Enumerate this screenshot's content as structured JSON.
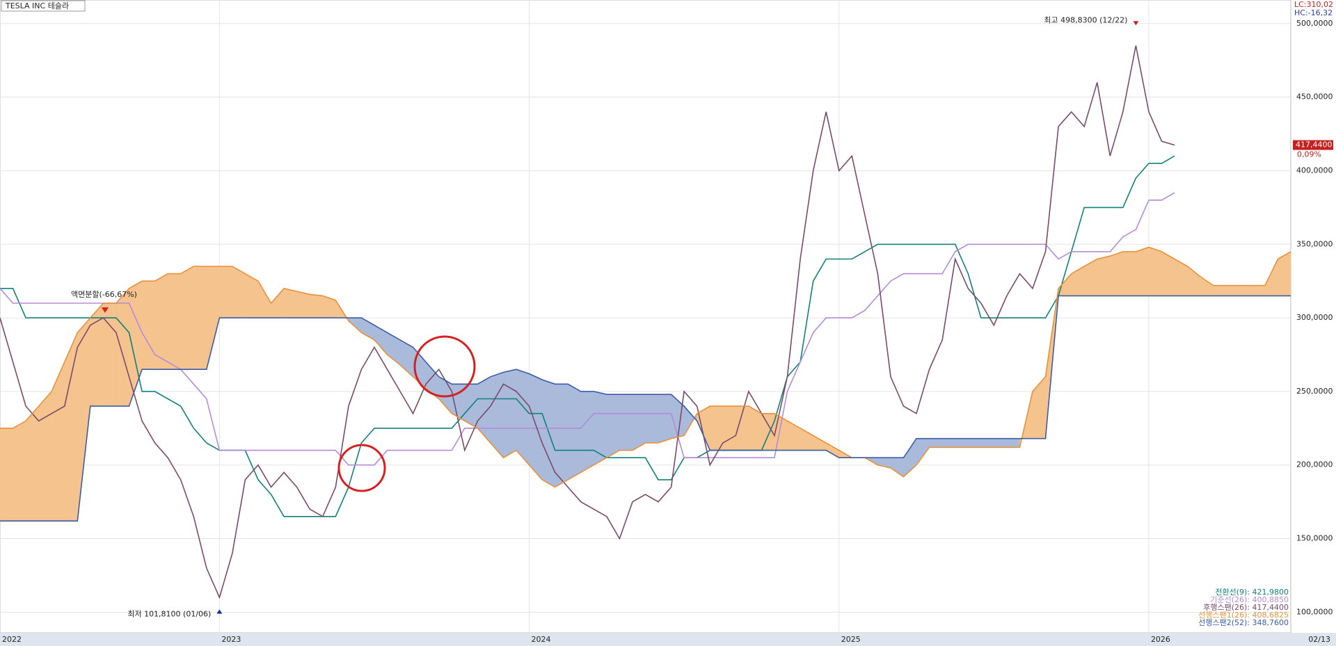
{
  "header": {
    "title": "TESLA INC  테슬라",
    "lc": "LC:310,02",
    "hc": "HC:-16,32"
  },
  "chart_data": {
    "type": "ichimoku",
    "categories": [
      "2022",
      null,
      null,
      null,
      null,
      null,
      null,
      null,
      null,
      null,
      null,
      null,
      null,
      null,
      null,
      null,
      null,
      "2023",
      null,
      null,
      null,
      null,
      null,
      null,
      null,
      null,
      null,
      null,
      null,
      null,
      null,
      null,
      null,
      null,
      null,
      null,
      null,
      null,
      null,
      null,
      null,
      "2024",
      null,
      null,
      null,
      null,
      null,
      null,
      null,
      null,
      null,
      null,
      null,
      null,
      null,
      null,
      null,
      null,
      null,
      null,
      null,
      null,
      null,
      null,
      null,
      "2025",
      null,
      null,
      null,
      null,
      null,
      null,
      null,
      null,
      null,
      null,
      null,
      null,
      null,
      null,
      null,
      null,
      null,
      null,
      null,
      null,
      null,
      null,
      null,
      "2026",
      null,
      null,
      null,
      null,
      null,
      null,
      null,
      null,
      null,
      null,
      "02/13"
    ],
    "ylim": [
      86,
      516
    ],
    "yticks": [
      {
        "value": 100,
        "label": "100,0000"
      },
      {
        "value": 150,
        "label": "150,0000"
      },
      {
        "value": 200,
        "label": "200,0000"
      },
      {
        "value": 250,
        "label": "250,0000"
      },
      {
        "value": 300,
        "label": "300,0000"
      },
      {
        "value": 350,
        "label": "350,0000"
      },
      {
        "value": 400,
        "label": "400,0000"
      },
      {
        "value": 450,
        "label": "450,0000"
      },
      {
        "value": 500,
        "label": "500,0000"
      }
    ],
    "grid": true,
    "cloud_colors": {
      "up": "#f4c38e",
      "down": "#a9badb"
    },
    "series": [
      {
        "name": "전환선(9): 421,9800",
        "color": "#12807a",
        "values": [
          320,
          320,
          300,
          300,
          300,
          300,
          300,
          300,
          300,
          300,
          290,
          250,
          250,
          245,
          240,
          225,
          215,
          210,
          210,
          210,
          190,
          180,
          165,
          165,
          165,
          165,
          165,
          185,
          215,
          225,
          225,
          225,
          225,
          225,
          225,
          225,
          235,
          245,
          245,
          245,
          245,
          235,
          235,
          210,
          210,
          210,
          210,
          205,
          205,
          205,
          205,
          190,
          190,
          205,
          205,
          210,
          210,
          210,
          210,
          210,
          230,
          260,
          270,
          325,
          340,
          340,
          340,
          345,
          350,
          350,
          350,
          350,
          350,
          350,
          350,
          330,
          300,
          300,
          300,
          300,
          300,
          300,
          315,
          345,
          375,
          375,
          375,
          375,
          395,
          405,
          405,
          410,
          null,
          null,
          null,
          null,
          null,
          null,
          null,
          null,
          null
        ]
      },
      {
        "name": "기준선(26): 400,8850",
        "color": "#b58bd9",
        "values": [
          320,
          310,
          310,
          310,
          310,
          310,
          310,
          310,
          310,
          310,
          310,
          290,
          275,
          270,
          265,
          255,
          245,
          210,
          210,
          210,
          210,
          210,
          210,
          210,
          210,
          210,
          210,
          200,
          200,
          200,
          210,
          210,
          210,
          210,
          210,
          210,
          225,
          225,
          225,
          225,
          225,
          225,
          225,
          225,
          225,
          225,
          235,
          235,
          235,
          235,
          235,
          235,
          235,
          205,
          205,
          205,
          205,
          205,
          205,
          205,
          205,
          250,
          270,
          290,
          300,
          300,
          300,
          305,
          315,
          325,
          330,
          330,
          330,
          330,
          345,
          350,
          350,
          350,
          350,
          350,
          350,
          350,
          340,
          345,
          345,
          345,
          345,
          355,
          360,
          380,
          380,
          385,
          null,
          null,
          null,
          null,
          null,
          null,
          null,
          null,
          null
        ]
      },
      {
        "name": "후행스팬(26): 417,4400",
        "color": "#7a4a6a",
        "values": [
          300,
          270,
          240,
          230,
          235,
          240,
          280,
          295,
          300,
          290,
          260,
          230,
          215,
          205,
          190,
          165,
          130,
          110,
          140,
          190,
          200,
          185,
          195,
          185,
          170,
          165,
          185,
          240,
          265,
          280,
          265,
          250,
          235,
          255,
          265,
          250,
          210,
          230,
          240,
          255,
          250,
          240,
          215,
          195,
          185,
          175,
          170,
          165,
          150,
          175,
          180,
          175,
          185,
          250,
          240,
          200,
          215,
          220,
          250,
          235,
          220,
          260,
          340,
          400,
          440,
          400,
          410,
          370,
          330,
          260,
          240,
          235,
          265,
          285,
          340,
          320,
          310,
          295,
          315,
          330,
          320,
          345,
          430,
          440,
          430,
          460,
          410,
          440,
          485,
          440,
          420,
          417.44,
          null,
          null,
          null,
          null,
          null,
          null,
          null,
          null,
          null
        ]
      },
      {
        "name": "선행스팬1(26): 408,6825",
        "color": "#e8913a",
        "values": [
          225,
          225,
          230,
          240,
          250,
          270,
          290,
          300,
          310,
          310,
          320,
          325,
          325,
          330,
          330,
          335,
          335,
          335,
          335,
          330,
          325,
          310,
          320,
          318,
          316,
          315,
          312,
          298,
          290,
          285,
          275,
          268,
          260,
          252,
          245,
          235,
          230,
          225,
          215,
          205,
          210,
          200,
          190,
          185,
          190,
          195,
          200,
          205,
          210,
          210,
          215,
          215,
          218,
          220,
          235,
          240,
          240,
          240,
          240,
          235,
          235,
          230,
          225,
          220,
          215,
          210,
          205,
          205,
          200,
          198,
          192,
          200,
          212,
          212,
          212,
          212,
          212,
          212,
          212,
          212,
          250,
          260,
          320,
          330,
          335,
          340,
          342,
          345,
          345,
          348,
          345,
          340,
          335,
          328,
          322,
          322,
          322,
          322,
          322,
          340,
          345
        ]
      },
      {
        "name": "선행스팬2(52): 348,7600",
        "color": "#3b5ca8",
        "values": [
          162,
          162,
          162,
          162,
          162,
          162,
          162,
          240,
          240,
          240,
          240,
          265,
          265,
          265,
          265,
          265,
          265,
          300,
          300,
          300,
          300,
          300,
          300,
          300,
          300,
          300,
          300,
          300,
          300,
          295,
          290,
          285,
          280,
          270,
          260,
          255,
          255,
          255,
          260,
          263,
          265,
          262,
          258,
          255,
          255,
          250,
          250,
          248,
          248,
          248,
          248,
          248,
          248,
          240,
          230,
          210,
          210,
          210,
          210,
          210,
          210,
          210,
          210,
          210,
          210,
          205,
          205,
          205,
          205,
          205,
          205,
          218,
          218,
          218,
          218,
          218,
          218,
          218,
          218,
          218,
          218,
          218,
          315,
          315,
          315,
          315,
          315,
          315,
          315,
          315,
          315,
          315,
          315,
          315,
          315,
          315,
          315,
          315,
          315,
          315,
          315
        ]
      }
    ],
    "last_price": {
      "value": 417.44,
      "label": "417,4400"
    },
    "change_label": "0,09%",
    "high": {
      "value": 498.83,
      "text": "최고 498,8300 (12/22)"
    },
    "low": {
      "value": 101.81,
      "text": "최저 101,8100 (01/06)"
    },
    "split_note": "액면분할(-66,67%)"
  }
}
